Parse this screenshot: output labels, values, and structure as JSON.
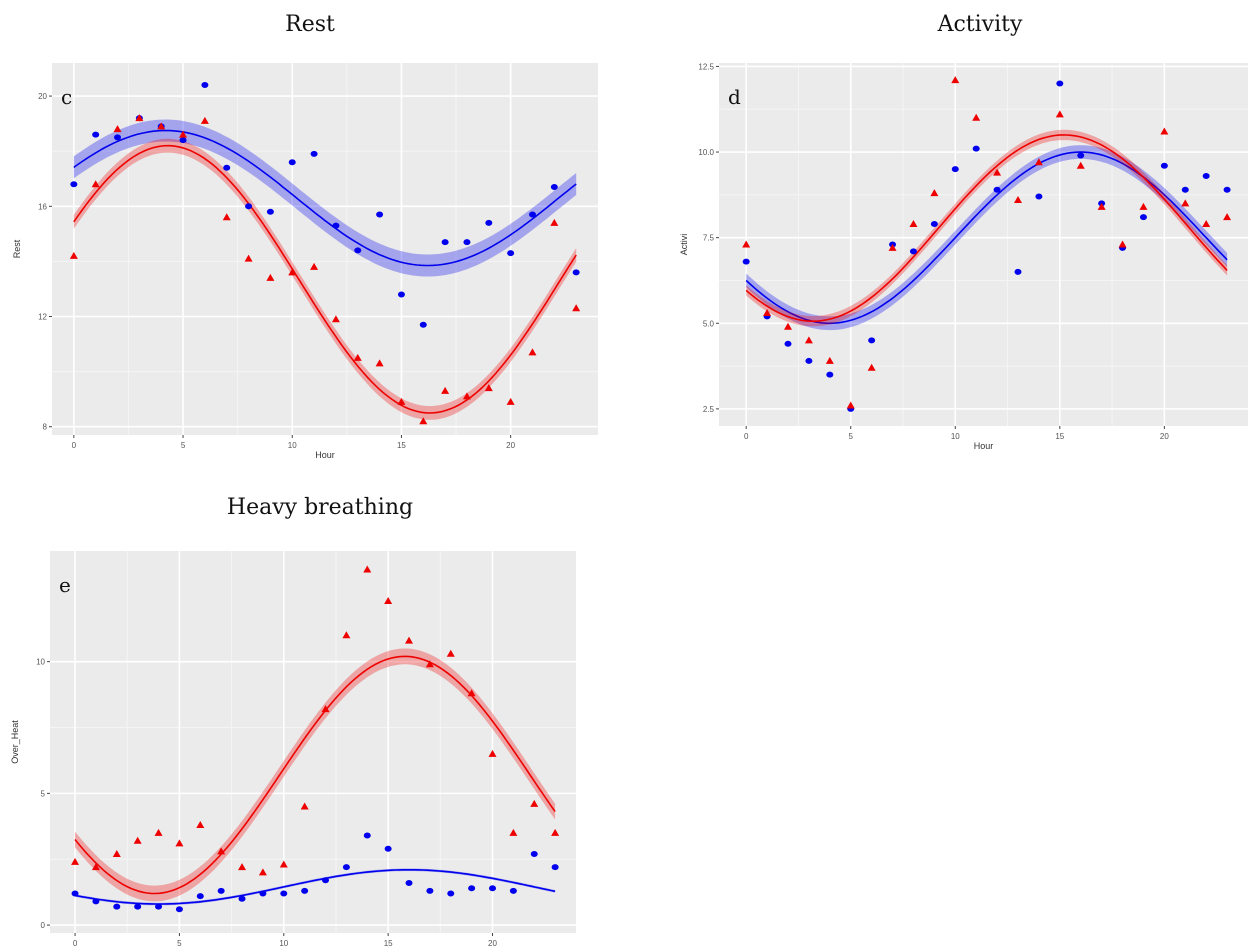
{
  "titles": {
    "rest": "Rest",
    "activity": "Activity",
    "heavy": "Heavy breathing"
  },
  "chart_data": [
    {
      "type": "scatter",
      "panel_letter": "c",
      "xlabel": "Hour",
      "ylabel": "Rest",
      "xlim": [
        -1,
        24
      ],
      "ylim": [
        7.7,
        21.2
      ],
      "xticks": [
        0,
        5,
        10,
        15,
        20
      ],
      "yticks": [
        8,
        12,
        16,
        20
      ],
      "ytick_labels": [
        "8",
        "12",
        "16",
        "20"
      ],
      "grid": true,
      "series": [
        {
          "color": "#0000ee",
          "marker": "circle",
          "x": [
            0,
            1,
            2,
            3,
            4,
            5,
            6,
            7,
            8,
            9,
            10,
            11,
            12,
            13,
            14,
            15,
            16,
            17,
            18,
            19,
            20,
            21,
            22,
            23
          ],
          "y": [
            16.8,
            18.6,
            18.5,
            19.2,
            18.9,
            18.4,
            20.4,
            17.4,
            16.0,
            15.8,
            17.6,
            17.9,
            15.3,
            14.4,
            15.7,
            12.8,
            11.7,
            14.7,
            14.7,
            15.4,
            14.3,
            15.7,
            16.7,
            13.6
          ],
          "fit": {
            "mean": 16.3,
            "amp": 2.45,
            "peak_hour": 4.2,
            "band": 0.4
          }
        },
        {
          "color": "#ee0000",
          "marker": "triangle",
          "x": [
            0,
            1,
            2,
            3,
            4,
            5,
            6,
            7,
            8,
            9,
            10,
            11,
            12,
            13,
            14,
            15,
            16,
            17,
            18,
            19,
            20,
            21,
            22,
            23
          ],
          "y": [
            14.2,
            16.8,
            18.8,
            19.2,
            18.9,
            18.6,
            19.1,
            15.6,
            14.1,
            13.4,
            13.6,
            13.8,
            11.9,
            10.5,
            10.3,
            8.9,
            8.2,
            9.3,
            9.1,
            9.4,
            8.9,
            10.7,
            15.4,
            12.3
          ],
          "fit": {
            "mean": 13.35,
            "amp": 4.85,
            "peak_hour": 4.3,
            "band": 0.25
          }
        }
      ]
    },
    {
      "type": "scatter",
      "panel_letter": "d",
      "xlabel": "Hour",
      "ylabel": "Activi",
      "xlim": [
        -1.3,
        24
      ],
      "ylim": [
        2.0,
        12.6
      ],
      "xticks": [
        0,
        5,
        10,
        15,
        20
      ],
      "yticks": [
        2.5,
        5.0,
        7.5,
        10.0,
        12.5
      ],
      "ytick_labels": [
        "2.5",
        "5.0",
        "7.5",
        "10.0",
        "12.5"
      ],
      "grid": true,
      "series": [
        {
          "color": "#0000ee",
          "marker": "circle",
          "x": [
            0,
            1,
            2,
            3,
            4,
            5,
            6,
            7,
            8,
            9,
            10,
            11,
            12,
            13,
            14,
            15,
            16,
            17,
            18,
            19,
            20,
            21,
            22,
            23
          ],
          "y": [
            6.8,
            5.2,
            4.4,
            3.9,
            3.5,
            2.5,
            4.5,
            7.3,
            7.1,
            7.9,
            9.5,
            10.1,
            8.9,
            6.5,
            8.7,
            12.0,
            9.9,
            8.5,
            7.2,
            8.1,
            9.6,
            8.9,
            9.3,
            8.9
          ],
          "fit": {
            "mean": 7.5,
            "amp": 2.5,
            "peak_hour": 16.0,
            "band": 0.2
          }
        },
        {
          "color": "#ee0000",
          "marker": "triangle",
          "x": [
            0,
            1,
            2,
            3,
            4,
            5,
            6,
            7,
            8,
            9,
            10,
            11,
            12,
            13,
            14,
            15,
            16,
            17,
            18,
            19,
            20,
            21,
            22,
            23
          ],
          "y": [
            7.3,
            5.3,
            4.9,
            4.5,
            3.9,
            2.6,
            3.7,
            7.2,
            7.9,
            8.8,
            12.1,
            11.0,
            9.4,
            8.6,
            9.7,
            11.1,
            9.6,
            8.4,
            7.3,
            8.4,
            10.6,
            8.5,
            7.9,
            8.1
          ],
          "fit": {
            "mean": 7.78,
            "amp": 2.72,
            "peak_hour": 15.2,
            "band": 0.15
          }
        }
      ]
    },
    {
      "type": "scatter",
      "panel_letter": "e",
      "xlabel": "Hour",
      "ylabel": "Over_Heat",
      "xlim": [
        -1.2,
        24
      ],
      "ylim": [
        -0.3,
        14.2
      ],
      "xticks": [
        0,
        5,
        10,
        15,
        20
      ],
      "yticks": [
        0,
        5,
        10
      ],
      "ytick_labels": [
        "0",
        "5",
        "10"
      ],
      "grid": true,
      "series": [
        {
          "color": "#0000ee",
          "marker": "circle",
          "x": [
            0,
            1,
            2,
            3,
            4,
            5,
            6,
            7,
            8,
            9,
            10,
            11,
            12,
            13,
            14,
            15,
            16,
            17,
            18,
            19,
            20,
            21,
            22,
            23
          ],
          "y": [
            1.2,
            0.9,
            0.7,
            0.7,
            0.7,
            0.6,
            1.1,
            1.3,
            1.0,
            1.2,
            1.2,
            1.3,
            1.7,
            2.2,
            3.4,
            2.9,
            1.6,
            1.3,
            1.2,
            1.4,
            1.4,
            1.3,
            2.7,
            2.2
          ],
          "fit": {
            "mean": 1.45,
            "amp": 0.65,
            "peak_hour": 16.0,
            "band": 0.05
          }
        },
        {
          "color": "#ee0000",
          "marker": "triangle",
          "x": [
            0,
            1,
            2,
            3,
            4,
            5,
            6,
            7,
            8,
            9,
            10,
            11,
            12,
            13,
            14,
            15,
            16,
            17,
            18,
            19,
            20,
            21,
            22,
            23
          ],
          "y": [
            2.4,
            2.2,
            2.7,
            3.2,
            3.5,
            3.1,
            3.8,
            2.8,
            2.2,
            2.0,
            2.3,
            4.5,
            8.2,
            11.0,
            13.5,
            12.3,
            10.8,
            9.9,
            10.3,
            8.8,
            6.5,
            3.5,
            4.6,
            3.5
          ],
          "fit": {
            "mean": 5.7,
            "amp": 4.5,
            "peak_hour": 15.8,
            "band": 0.3
          }
        }
      ]
    }
  ]
}
